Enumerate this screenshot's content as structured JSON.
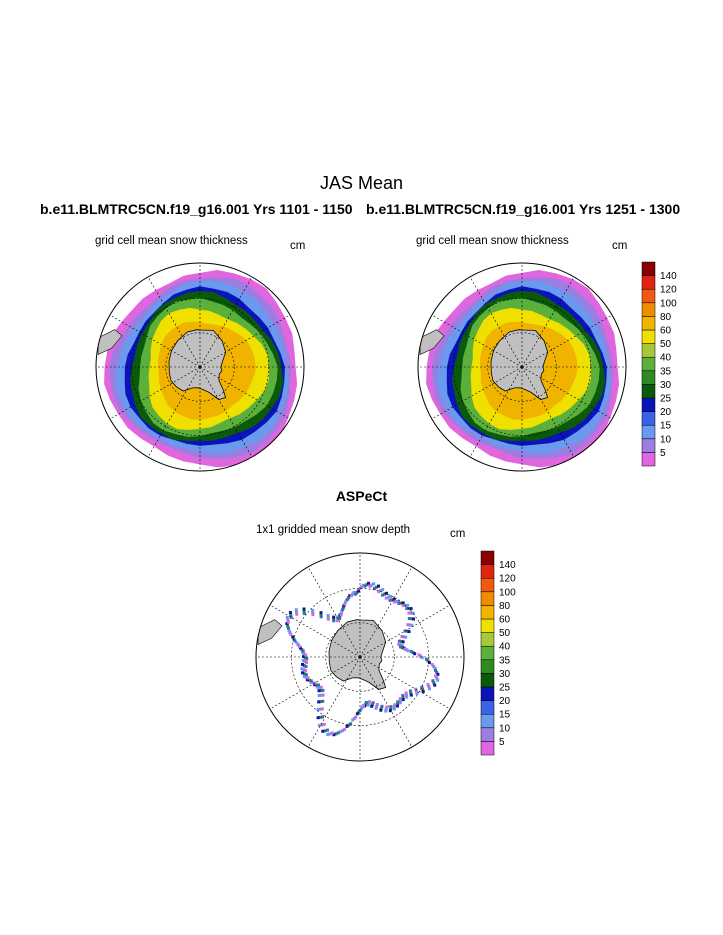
{
  "title": "JAS Mean",
  "subtitles": {
    "left": "b.e11.BLMTRC5CN.f19_g16.001  Yrs 1101 - 1150",
    "right": "b.e11.BLMTRC5CN.f19_g16.001  Yrs 1251 - 1300"
  },
  "panels": [
    {
      "label": "grid cell mean snow thickness",
      "units": "cm"
    },
    {
      "label": "grid cell mean snow thickness",
      "units": "cm"
    },
    {
      "label": "1x1 gridded mean snow depth",
      "units": "cm"
    }
  ],
  "aspect_title": "ASPeCt",
  "colorbar": {
    "levels": [
      "5",
      "10",
      "15",
      "20",
      "25",
      "30",
      "35",
      "40",
      "50",
      "60",
      "80",
      "100",
      "120",
      "140"
    ],
    "colors": [
      "#e066e0",
      "#9a7fe0",
      "#6a9af0",
      "#3a62e6",
      "#0a14b8",
      "#0a5a0a",
      "#2e8b22",
      "#5ab03a",
      "#a8c83a",
      "#f0e000",
      "#f0b400",
      "#f08c00",
      "#f05a10",
      "#e02410",
      "#8a0000"
    ]
  },
  "colors": {
    "land": "#c0c0c0",
    "gridline": "#000000"
  }
}
